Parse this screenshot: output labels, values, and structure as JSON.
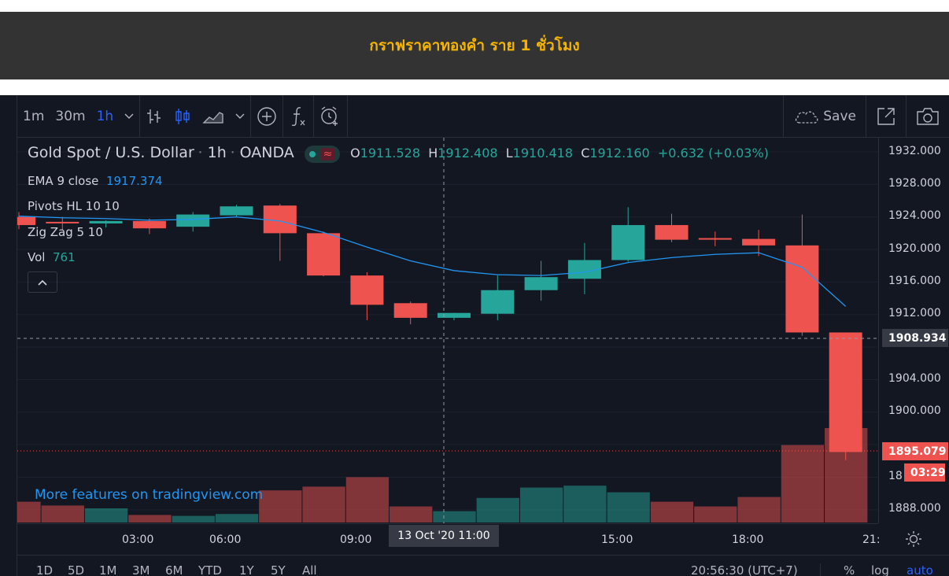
{
  "page": {
    "banner_title": "กราฟราคาทองคำ ราย 1 ชั่วโมง"
  },
  "toolbar": {
    "intervals": [
      "1m",
      "30m",
      "1h"
    ],
    "active_interval": "1h",
    "save_label": "Save"
  },
  "legend": {
    "symbol": "Gold Spot / U.S. Dollar",
    "interval": "1h",
    "exchange": "OANDA",
    "o_label": "O",
    "o_value": "1911.528",
    "h_label": "H",
    "h_value": "1912.408",
    "l_label": "L",
    "l_value": "1910.418",
    "c_label": "C",
    "c_value": "1912.160",
    "change": "+0.632 (+0.03%)",
    "ema_label": "EMA 9 close",
    "ema_value": "1917.374",
    "pivots_label": "Pivots HL 10 10",
    "zigzag_label": "Zig Zag 5 10",
    "vol_label": "Vol",
    "vol_value": "761"
  },
  "price_axis": {
    "ticks": [
      "1932.000",
      "1928.000",
      "1924.000",
      "1920.000",
      "1916.000",
      "1912.000",
      "1904.000",
      "1900.000",
      "1888.000"
    ],
    "partial_tick": "18",
    "crosshair_price": "1908.934",
    "last_price": "1895.079",
    "countdown": "03:29"
  },
  "time_axis": {
    "ticks": [
      "03:00",
      "06:00",
      "09:00",
      "15:00",
      "18:00",
      "21:"
    ],
    "crosshair_label": "13 Oct '20   11:00"
  },
  "bottom_bar": {
    "ranges": [
      "1D",
      "5D",
      "1M",
      "3M",
      "6M",
      "YTD",
      "1Y",
      "5Y",
      "All"
    ],
    "clock": "20:56:30 (UTC+7)",
    "percent": "%",
    "log": "log",
    "auto": "auto"
  },
  "watermark": "More features on tradingview.com",
  "colors": {
    "up": "#26a69a",
    "down": "#ef5350",
    "ema": "#2196f3",
    "bg": "#131722"
  },
  "chart_data": {
    "type": "candlestick",
    "ylim": [
      1886,
      1934
    ],
    "candles": [
      {
        "t": "00:00",
        "o": 1924.0,
        "h": 1924.6,
        "l": 1922.5,
        "c": 1923.0
      },
      {
        "t": "01:00",
        "o": 1923.4,
        "h": 1924.0,
        "l": 1922.4,
        "c": 1923.3
      },
      {
        "t": "02:00",
        "o": 1923.2,
        "h": 1923.6,
        "l": 1922.7,
        "c": 1923.5
      },
      {
        "t": "03:00",
        "o": 1923.5,
        "h": 1923.8,
        "l": 1921.9,
        "c": 1922.6
      },
      {
        "t": "04:00",
        "o": 1922.8,
        "h": 1924.6,
        "l": 1922.2,
        "c": 1924.3
      },
      {
        "t": "05:00",
        "o": 1924.2,
        "h": 1925.5,
        "l": 1924.0,
        "c": 1925.3
      },
      {
        "t": "06:00",
        "o": 1925.4,
        "h": 1925.6,
        "l": 1918.6,
        "c": 1922.0
      },
      {
        "t": "07:00",
        "o": 1922.0,
        "h": 1922.2,
        "l": 1916.7,
        "c": 1916.8
      },
      {
        "t": "08:00",
        "o": 1916.8,
        "h": 1917.2,
        "l": 1911.3,
        "c": 1913.2
      },
      {
        "t": "09:00",
        "o": 1913.4,
        "h": 1913.6,
        "l": 1910.8,
        "c": 1911.6
      },
      {
        "t": "10:00",
        "o": 1911.6,
        "h": 1912.2,
        "l": 1911.3,
        "c": 1912.2
      },
      {
        "t": "11:00",
        "o": 1912.1,
        "h": 1916.8,
        "l": 1911.3,
        "c": 1915.0
      },
      {
        "t": "12:00",
        "o": 1915.0,
        "h": 1918.6,
        "l": 1913.7,
        "c": 1916.6
      },
      {
        "t": "13:00",
        "o": 1916.4,
        "h": 1920.8,
        "l": 1914.5,
        "c": 1918.7
      },
      {
        "t": "14:00",
        "o": 1918.7,
        "h": 1925.2,
        "l": 1918.5,
        "c": 1923.0
      },
      {
        "t": "15:00",
        "o": 1923.0,
        "h": 1924.4,
        "l": 1920.9,
        "c": 1921.2
      },
      {
        "t": "16:00",
        "o": 1921.4,
        "h": 1922.2,
        "l": 1920.4,
        "c": 1921.3
      },
      {
        "t": "17:00",
        "o": 1921.3,
        "h": 1922.4,
        "l": 1919.2,
        "c": 1920.5
      },
      {
        "t": "18:00",
        "o": 1920.5,
        "h": 1924.3,
        "l": 1909.4,
        "c": 1909.8
      },
      {
        "t": "19:00",
        "o": 1909.8,
        "h": 1909.8,
        "l": 1894.1,
        "c": 1895.1
      }
    ],
    "ema": [
      1924.1,
      1923.9,
      1923.8,
      1923.6,
      1923.7,
      1924.0,
      1923.5,
      1922.1,
      1920.3,
      1918.6,
      1917.4,
      1916.9,
      1916.8,
      1917.2,
      1918.4,
      1919.0,
      1919.4,
      1919.6,
      1917.8,
      1913.0
    ],
    "volume": [
      {
        "v": 0.22,
        "up": false
      },
      {
        "v": 0.18,
        "up": false
      },
      {
        "v": 0.15,
        "up": true
      },
      {
        "v": 0.08,
        "up": false
      },
      {
        "v": 0.07,
        "up": true
      },
      {
        "v": 0.09,
        "up": true
      },
      {
        "v": 0.34,
        "up": false
      },
      {
        "v": 0.38,
        "up": false
      },
      {
        "v": 0.48,
        "up": false
      },
      {
        "v": 0.17,
        "up": false
      },
      {
        "v": 0.12,
        "up": true
      },
      {
        "v": 0.26,
        "up": true
      },
      {
        "v": 0.37,
        "up": true
      },
      {
        "v": 0.39,
        "up": true
      },
      {
        "v": 0.32,
        "up": true
      },
      {
        "v": 0.22,
        "up": false
      },
      {
        "v": 0.17,
        "up": false
      },
      {
        "v": 0.27,
        "up": false
      },
      {
        "v": 0.82,
        "up": false
      },
      {
        "v": 1.0,
        "up": false
      }
    ]
  }
}
